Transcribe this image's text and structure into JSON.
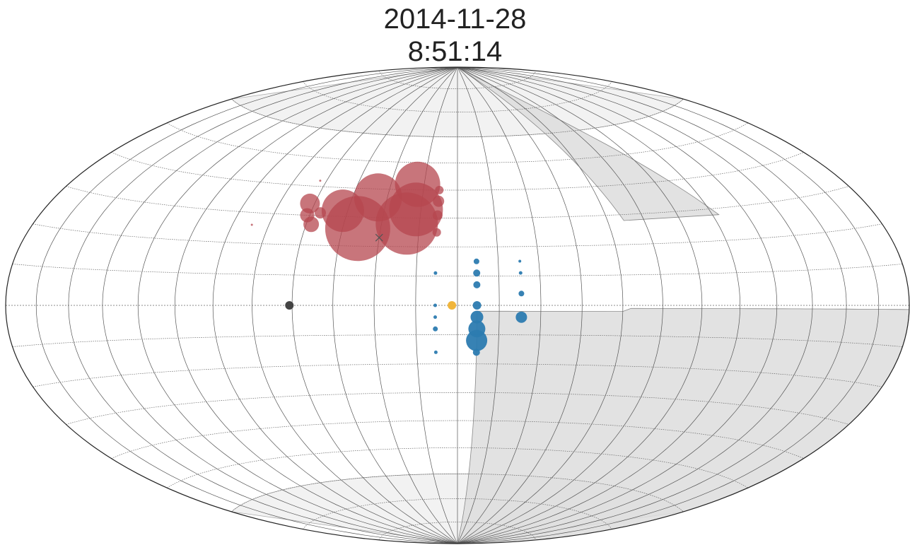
{
  "title": {
    "date": "2014-11-28",
    "time": "8:51:14"
  },
  "colors": {
    "outline": "#222222",
    "gridline_meridian": "#555555",
    "gridline_parallel": "#666666",
    "shade_fill": "#dddddd",
    "shade_fill_light": "#f2f2f2",
    "red_marker": "#b5474f",
    "blue_marker": "#2c7bb0",
    "yellow_marker": "#f0b53b",
    "dark_marker": "#444444",
    "cross_marker": "#555555"
  },
  "chart_data": {
    "type": "scatter",
    "projection": "aitoff-hammer",
    "xlim": [
      -180,
      180
    ],
    "ylim": [
      -90,
      90
    ],
    "grid": true,
    "meridian_step_deg": 15,
    "parallel_step_deg": 10,
    "series": [
      {
        "color_key": "red_marker",
        "opacity": 0.75,
        "points": [
          {
            "lon": -39,
            "lat": 26,
            "size": 46
          },
          {
            "lon": -34,
            "lat": 37,
            "size": 34
          },
          {
            "lon": -20,
            "lat": 28,
            "size": 44
          },
          {
            "lon": -18,
            "lat": 42,
            "size": 32
          },
          {
            "lon": -17,
            "lat": 33,
            "size": 38
          },
          {
            "lon": -47,
            "lat": 32,
            "size": 30
          },
          {
            "lon": -58,
            "lat": 27,
            "size": 11
          },
          {
            "lon": -62,
            "lat": 34,
            "size": 14
          },
          {
            "lon": -61,
            "lat": 30,
            "size": 10
          },
          {
            "lon": -56,
            "lat": 31,
            "size": 8
          },
          {
            "lon": -8,
            "lat": 25,
            "size": 6
          },
          {
            "lon": -8,
            "lat": 31,
            "size": 7
          },
          {
            "lon": -8,
            "lat": 36,
            "size": 8
          },
          {
            "lon": -8,
            "lat": 40,
            "size": 6
          },
          {
            "lon": -82,
            "lat": 26,
            "size": 1.5
          },
          {
            "lon": -63,
            "lat": 42,
            "size": 1.5
          }
        ]
      },
      {
        "color_key": "blue_marker",
        "opacity": 0.95,
        "points": [
          {
            "lon": 7,
            "lat": 15,
            "size": 4
          },
          {
            "lon": 7,
            "lat": 11,
            "size": 5
          },
          {
            "lon": 7,
            "lat": 7,
            "size": 5
          },
          {
            "lon": 7,
            "lat": 0,
            "size": 6
          },
          {
            "lon": 7,
            "lat": -4,
            "size": 9
          },
          {
            "lon": 7,
            "lat": -8,
            "size": 12
          },
          {
            "lon": 7,
            "lat": -12,
            "size": 15
          },
          {
            "lon": 7,
            "lat": -16,
            "size": 5
          },
          {
            "lon": -8,
            "lat": 11,
            "size": 2.5
          },
          {
            "lon": -8,
            "lat": 0,
            "size": 2.5
          },
          {
            "lon": -8,
            "lat": -4,
            "size": 2.5
          },
          {
            "lon": -8,
            "lat": -8,
            "size": 3.5
          },
          {
            "lon": -8,
            "lat": -16,
            "size": 2.5
          },
          {
            "lon": 23,
            "lat": 15,
            "size": 2
          },
          {
            "lon": 23,
            "lat": 11,
            "size": 2.5
          },
          {
            "lon": 23,
            "lat": 4,
            "size": 4
          },
          {
            "lon": 23,
            "lat": -4,
            "size": 8
          }
        ]
      },
      {
        "color_key": "yellow_marker",
        "opacity": 1,
        "points": [
          {
            "lon": -2,
            "lat": 0,
            "size": 6
          }
        ]
      },
      {
        "color_key": "dark_marker",
        "opacity": 1,
        "points": [
          {
            "lon": -61,
            "lat": 0,
            "size": 6
          }
        ]
      }
    ],
    "cross_markers": [
      {
        "lon": -30,
        "lat": 23
      }
    ]
  }
}
